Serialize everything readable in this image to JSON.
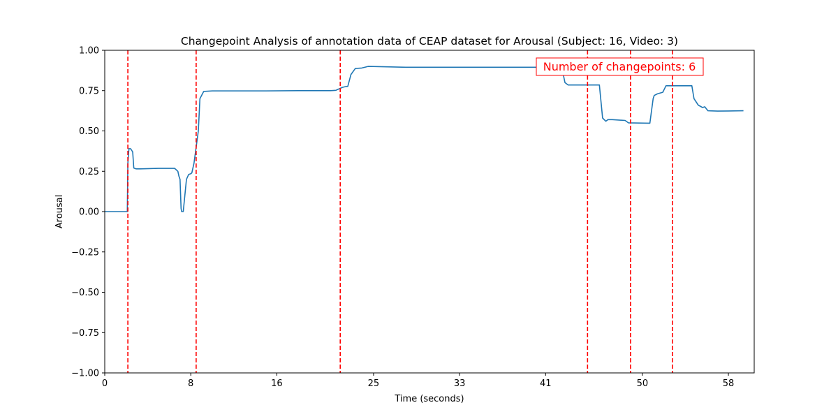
{
  "chart_data": {
    "type": "line",
    "title": "Changepoint Analysis of annotation data of CEAP dataset for Arousal (Subject: 16, Video: 3)",
    "xlabel": "Time (seconds)",
    "ylabel": "Arousal",
    "xlim": [
      0,
      60.4
    ],
    "ylim": [
      -1.0,
      1.0
    ],
    "x_ticks": [
      0,
      8,
      16,
      25,
      33,
      41,
      50,
      58
    ],
    "x_tick_labels": [
      "0",
      "8",
      "16",
      "25",
      "33",
      "41",
      "50",
      "58"
    ],
    "y_ticks": [
      1.0,
      0.75,
      0.5,
      0.25,
      0.0,
      -0.25,
      -0.5,
      -0.75,
      -1.0
    ],
    "y_tick_labels": [
      "1.00",
      "0.75",
      "0.50",
      "0.25",
      "0.00",
      "−0.25",
      "−0.50",
      "−0.75",
      "−1.00"
    ],
    "grid": false,
    "series": [
      {
        "name": "Arousal",
        "color": "#1f77b4",
        "x": [
          0,
          2.1,
          2.15,
          2.25,
          2.4,
          2.6,
          2.7,
          2.9,
          3.3,
          5,
          6.5,
          6.8,
          6.9,
          7.0,
          7.1,
          7.15,
          7.3,
          7.6,
          7.8,
          8.0,
          8.1,
          8.3,
          8.5,
          8.7,
          8.85,
          9.2,
          10,
          12,
          15,
          18,
          21,
          21.5,
          22.1,
          22.4,
          22.6,
          22.9,
          23.3,
          23.9,
          24.5,
          28,
          33,
          38,
          41,
          42,
          42.5,
          42.8,
          43.1,
          46.0,
          46.3,
          46.6,
          46.8,
          47.2,
          48.4,
          48.7,
          50.7,
          50.8,
          51.0,
          51.1,
          51.4,
          51.9,
          52.2,
          54.4,
          54.6,
          54.8,
          55.2,
          55.6,
          55.8,
          56.1,
          57,
          58,
          59.4
        ],
        "y": [
          0.0,
          0.0,
          0.3,
          0.39,
          0.39,
          0.37,
          0.27,
          0.265,
          0.265,
          0.268,
          0.268,
          0.25,
          0.22,
          0.2,
          0.02,
          0.0,
          0.0,
          0.2,
          0.23,
          0.235,
          0.24,
          0.3,
          0.4,
          0.5,
          0.7,
          0.745,
          0.748,
          0.748,
          0.748,
          0.75,
          0.75,
          0.752,
          0.77,
          0.775,
          0.776,
          0.85,
          0.887,
          0.89,
          0.9,
          0.895,
          0.895,
          0.895,
          0.895,
          0.895,
          0.895,
          0.8,
          0.785,
          0.785,
          0.58,
          0.56,
          0.57,
          0.57,
          0.565,
          0.55,
          0.548,
          0.6,
          0.7,
          0.72,
          0.73,
          0.74,
          0.78,
          0.78,
          0.78,
          0.7,
          0.66,
          0.645,
          0.65,
          0.625,
          0.623,
          0.624,
          0.625
        ]
      }
    ],
    "changepoints": [
      2.15,
      8.5,
      21.9,
      44.9,
      48.9,
      52.8
    ],
    "changepoint_color": "#ff0000",
    "annotation": {
      "text": "Number of changepoints: 6",
      "color": "#ff0000",
      "placement": "top-right"
    }
  }
}
